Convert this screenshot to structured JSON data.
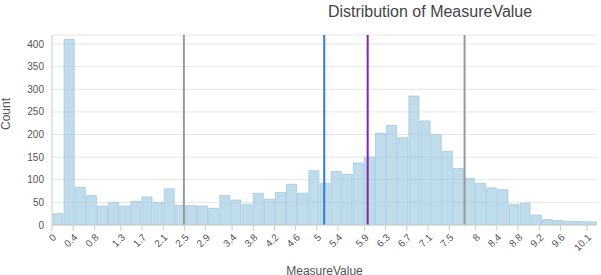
{
  "chart_data": {
    "type": "histogram",
    "title": "Distribution of MeasureValue",
    "x_label": "MeasureValue",
    "y_label": "Count",
    "bins": [
      0,
      0.21,
      0.42,
      0.63,
      0.84,
      1.05,
      1.26,
      1.47,
      1.68,
      1.89,
      2.1,
      2.31,
      2.52,
      2.73,
      2.94,
      3.15,
      3.36,
      3.57,
      3.78,
      3.99,
      4.2,
      4.41,
      4.62,
      4.83,
      5.04,
      5.25,
      5.46,
      5.67,
      5.88,
      6.09,
      6.3,
      6.51,
      6.72,
      6.93,
      7.14,
      7.35,
      7.56,
      7.77,
      7.98,
      8.19,
      8.4,
      8.61,
      8.82,
      9.03,
      9.24,
      9.45,
      9.66,
      9.87,
      10.08,
      10.29
    ],
    "values": [
      25,
      410,
      83,
      65,
      42,
      50,
      42,
      52,
      62,
      50,
      80,
      43,
      43,
      42,
      37,
      65,
      55,
      45,
      70,
      57,
      72,
      90,
      70,
      120,
      92,
      118,
      112,
      137,
      150,
      203,
      220,
      193,
      285,
      230,
      200,
      163,
      125,
      103,
      92,
      82,
      78,
      45,
      48,
      22,
      12,
      10,
      8,
      8,
      7
    ],
    "color": "#9ecae1",
    "xlim": [
      0,
      10.29
    ],
    "xticks": [
      0,
      0.4,
      0.8,
      1.3,
      1.7,
      2.1,
      2.5,
      2.9,
      3.4,
      3.8,
      4.2,
      4.6,
      5,
      5.4,
      5.9,
      6.3,
      6.7,
      7.1,
      7.5,
      8,
      8.4,
      8.8,
      9.2,
      9.6,
      10.1
    ],
    "ylim": [
      0,
      420
    ],
    "yticks": [
      0,
      50,
      100,
      150,
      200,
      250,
      300,
      350,
      400
    ],
    "grid": true,
    "reference_lines": [
      {
        "x": 2.49,
        "color": "#999999"
      },
      {
        "x": 5.14,
        "color": "#2b7bd8"
      },
      {
        "x": 5.96,
        "color": "#8a1fb0"
      },
      {
        "x": 7.79,
        "color": "#999999"
      }
    ]
  }
}
